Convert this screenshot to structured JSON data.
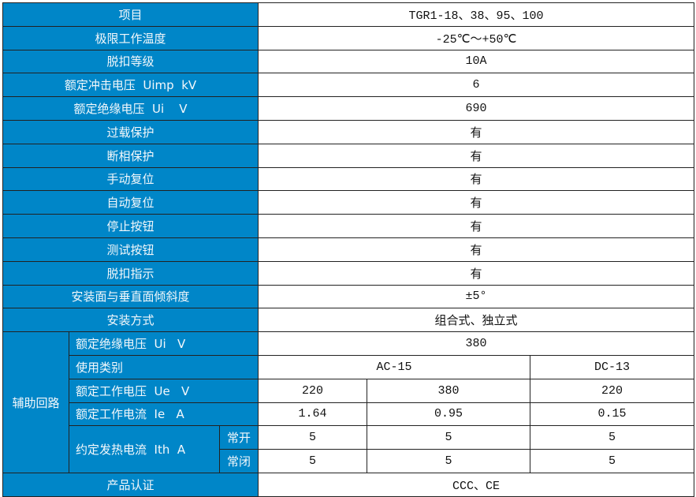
{
  "accent_color": "#0086c8",
  "rows": [
    {
      "label": "项目",
      "value": "TGR1-18、38、95、100"
    },
    {
      "label": "极限工作温度",
      "value": "-25℃～+50℃"
    },
    {
      "label": "脱扣等级",
      "value": "10A"
    },
    {
      "label": "额定冲击电压  Uimp  kV",
      "value": "6"
    },
    {
      "label": "额定绝缘电压  Ui    V",
      "value": "690"
    },
    {
      "label": "过载保护",
      "value": "有"
    },
    {
      "label": "断相保护",
      "value": "有"
    },
    {
      "label": "手动复位",
      "value": "有"
    },
    {
      "label": "自动复位",
      "value": "有"
    },
    {
      "label": "停止按钮",
      "value": "有"
    },
    {
      "label": "测试按钮",
      "value": "有"
    },
    {
      "label": "脱扣指示",
      "value": "有"
    },
    {
      "label": "安装面与垂直面倾斜度",
      "value": "±5°"
    },
    {
      "label": "安装方式",
      "value": "组合式、独立式"
    }
  ],
  "aux": {
    "group_label": "辅助回路",
    "insulation": {
      "label": "额定绝缘电压  Ui   V",
      "value": "380"
    },
    "category": {
      "label": "使用类别",
      "ac": "AC-15",
      "dc": "DC-13"
    },
    "voltage": {
      "label": "额定工作电压  Ue   V",
      "values": [
        "220",
        "380",
        "220"
      ]
    },
    "current": {
      "label": "额定工作电流  Ie   A",
      "values": [
        "1.64",
        "0.95",
        "0.15"
      ]
    },
    "thermal": {
      "label": "约定发热电流  Ith  A",
      "no_label": "常开",
      "nc_label": "常闭",
      "no_values": [
        "5",
        "5",
        "5"
      ],
      "nc_values": [
        "5",
        "5",
        "5"
      ]
    }
  },
  "cert": {
    "label": "产品认证",
    "value": "CCC、CE"
  }
}
